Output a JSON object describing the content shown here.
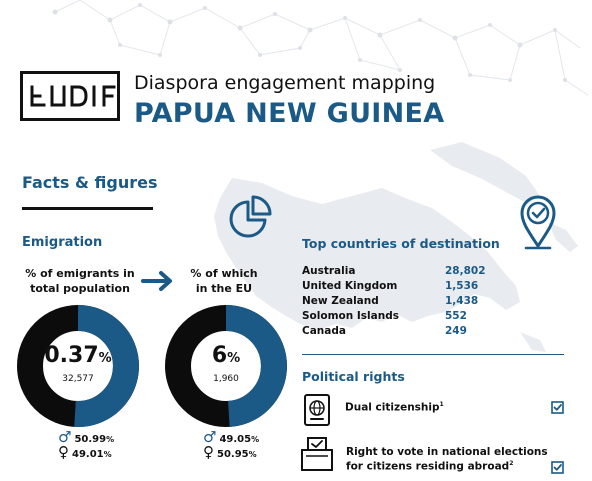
{
  "header": {
    "logo_text": "EUDIF",
    "subtitle": "Diaspora engagement mapping",
    "country": "PAPUA NEW GUINEA"
  },
  "facts": {
    "title": "Facts & figures"
  },
  "emigration": {
    "title": "Emigration",
    "total": {
      "caption_line1": "% of emigrants in",
      "caption_line2": "total population",
      "percent": "0.37",
      "percent_unit": "%",
      "percent_value": 0.37,
      "count": "32,577",
      "male": "50.99",
      "female": "49.01",
      "unit": "%"
    },
    "eu": {
      "caption_line1": "% of which",
      "caption_line2": "in the EU",
      "percent": "6",
      "percent_unit": "%",
      "percent_value": 6,
      "count": "1,960",
      "male": "49.05",
      "female": "50.95",
      "unit": "%"
    }
  },
  "destinations": {
    "title": "Top countries of destination",
    "rows": [
      {
        "country": "Australia",
        "value": "28,802"
      },
      {
        "country": "United Kingdom",
        "value": "1,536"
      },
      {
        "country": "New Zealand",
        "value": "1,438"
      },
      {
        "country": "Solomon Islands",
        "value": "552"
      },
      {
        "country": "Canada",
        "value": "249"
      }
    ]
  },
  "political": {
    "title": "Political rights",
    "dual_label": "Dual citizenship",
    "dual_note": "1",
    "vote_line1": "Right to vote in national elections",
    "vote_line2": "for citizens residing abroad",
    "vote_note": "2"
  },
  "colors": {
    "accent": "#1b5a87",
    "dark": "#111111",
    "map": "#e8ebf0"
  },
  "icons": [
    "pie-chart-icon",
    "location-pin-check-icon",
    "passport-icon",
    "ballot-box-icon",
    "checkbox-checked-icon",
    "male-icon",
    "female-icon",
    "arrow-right-icon"
  ]
}
